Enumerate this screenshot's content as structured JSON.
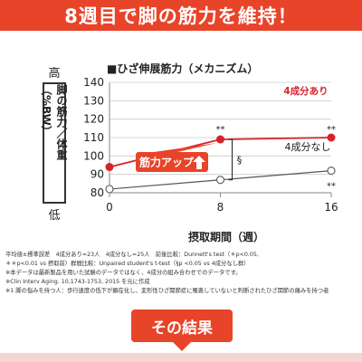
{
  "banner": {
    "title": "8週目で脚の筋力を維持！"
  },
  "y_axis_label": {
    "high": "高",
    "main": "脚の筋力／体重（%BW）",
    "low": "低"
  },
  "chart_data": {
    "type": "line",
    "title": "■ひざ伸展筋力（メカニズム）",
    "xlabel": "摂取期間（週）",
    "x": [
      0,
      8,
      16
    ],
    "x_ticks": [
      "0",
      "8",
      "16"
    ],
    "y_ticks": [
      "80",
      "90",
      "100",
      "110",
      "120",
      "130",
      "140"
    ],
    "ylim": [
      80,
      140
    ],
    "series": [
      {
        "name": "4成分あり",
        "values": [
          94,
          109,
          110
        ],
        "color": "#d8222a"
      },
      {
        "name": "4成分なし",
        "values": [
          82,
          87,
          92
        ],
        "color": "#555555"
      }
    ],
    "annotations": {
      "sig_red_8": "**",
      "sig_red_16": "**",
      "sig_gray_16": "**",
      "section": "§",
      "callout": "筋力アップ"
    }
  },
  "notes": [
    "平均値±標準誤差　4成分あり=23人　4成分なし=25人　前後比較：Dunnett's test（＊p<0.05,",
    "＊＊p<0.01 vs 摂取前）群間比較：Unpaired student's t-test（§p <0.05 vs 4成分なし群）",
    "※本データは最新製品を用いた試験のデータではなく、4成分の組み合わせでのデータです。",
    "※Clin Interv Aging. 10,1743-1753, 2015 を元に作成",
    "※1 脚の悩みを持つ人：歩行速度の低下が顕在化し、変形性ひざ関節症に罹患していないと判断されたひざ関節の痛みを持つ者"
  ],
  "result_button": {
    "label": "その結果"
  },
  "colors": {
    "banner": "#e8442a",
    "red": "#d8222a",
    "gray": "#555555"
  }
}
